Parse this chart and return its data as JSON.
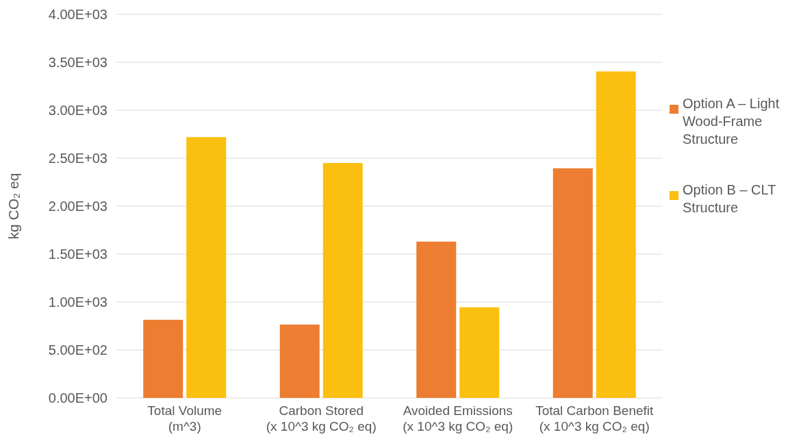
{
  "chart_data": {
    "type": "bar",
    "ylabel": "kg CO₂ eq",
    "categories": [
      "Total Volume\n(m^3)",
      "Carbon Stored\n(x 10^3 kg CO₂ eq)",
      "Avoided  Emissions\n(x 10^3 kg CO₂ eq)",
      "Total Carbon Benefit\n(x 10^3 kg CO₂ eq)"
    ],
    "series": [
      {
        "name": "Option A – Light Wood-Frame Structure",
        "color": "#ed7d31",
        "values": [
          815,
          765,
          1630,
          2395
        ]
      },
      {
        "name": "Option B – CLT Structure",
        "color": "#fbbf10",
        "values": [
          2720,
          2450,
          945,
          3405
        ]
      }
    ],
    "ylim": [
      0,
      4000
    ],
    "yticks": [
      {
        "value": 0,
        "label": "0.00E+00"
      },
      {
        "value": 500,
        "label": "5.00E+02"
      },
      {
        "value": 1000,
        "label": "1.00E+03"
      },
      {
        "value": 1500,
        "label": "1.50E+03"
      },
      {
        "value": 2000,
        "label": "2.00E+03"
      },
      {
        "value": 2500,
        "label": "2.50E+03"
      },
      {
        "value": 3000,
        "label": "3.00E+03"
      },
      {
        "value": 3500,
        "label": "3.50E+03"
      },
      {
        "value": 4000,
        "label": "4.00E+03"
      }
    ],
    "grid": "y",
    "legend": "right"
  }
}
